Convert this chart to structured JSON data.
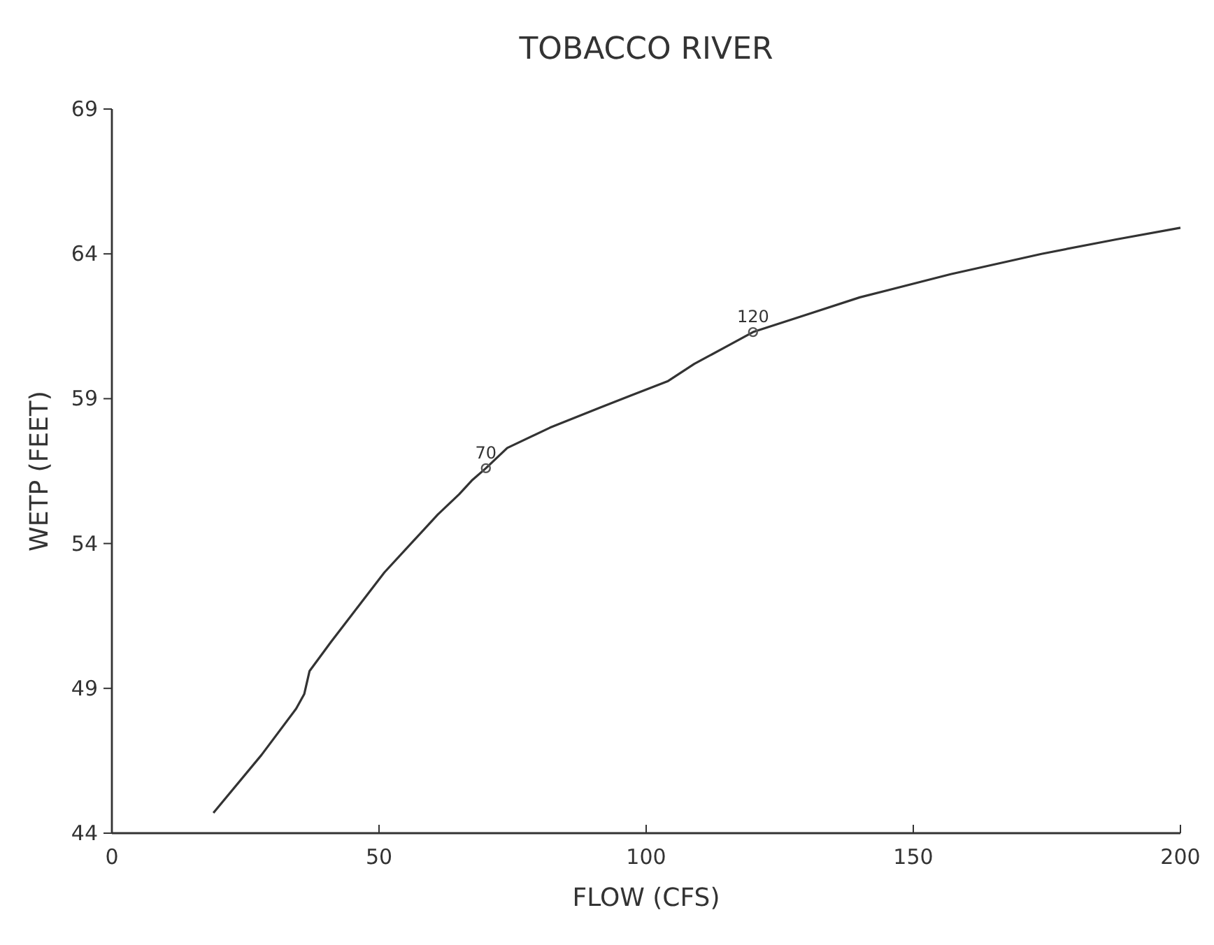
{
  "chart_data": {
    "type": "line",
    "title": "TOBACCO RIVER",
    "xlabel": "FLOW (CFS)",
    "ylabel": "WETP (FEET)",
    "xlim": [
      0,
      200
    ],
    "xticks": [
      0,
      50,
      100,
      150,
      200
    ],
    "ylim": [
      44,
      69
    ],
    "yticks": [
      44,
      49,
      54,
      59,
      64,
      69
    ],
    "grid": false,
    "series": [
      {
        "type": "line",
        "color": "#333333",
        "marker": "none",
        "x": [
          19,
          28,
          34.5,
          36,
          37,
          41,
          46,
          51,
          56.5,
          61,
          65,
          67.5,
          70,
          74,
          82,
          91.5,
          97,
          104,
          109,
          115,
          120,
          130,
          140,
          157,
          174,
          188,
          200
        ],
        "values": [
          44.7,
          46.7,
          48.3,
          48.8,
          49.6,
          50.6,
          51.8,
          53.0,
          54.1,
          55.0,
          55.7,
          56.2,
          56.6,
          57.3,
          58.0,
          58.7,
          59.1,
          59.6,
          60.2,
          60.8,
          61.3,
          61.9,
          62.5,
          63.3,
          64.0,
          64.5,
          64.9
        ]
      },
      {
        "type": "scatter",
        "color": "#555555",
        "marker": "circle",
        "x": [
          70,
          120
        ],
        "values": [
          56.6,
          61.3
        ]
      }
    ],
    "annotations": [
      {
        "text": "70",
        "x": 70,
        "y": 56.6
      },
      {
        "text": "120",
        "x": 120,
        "y": 61.3
      }
    ]
  }
}
